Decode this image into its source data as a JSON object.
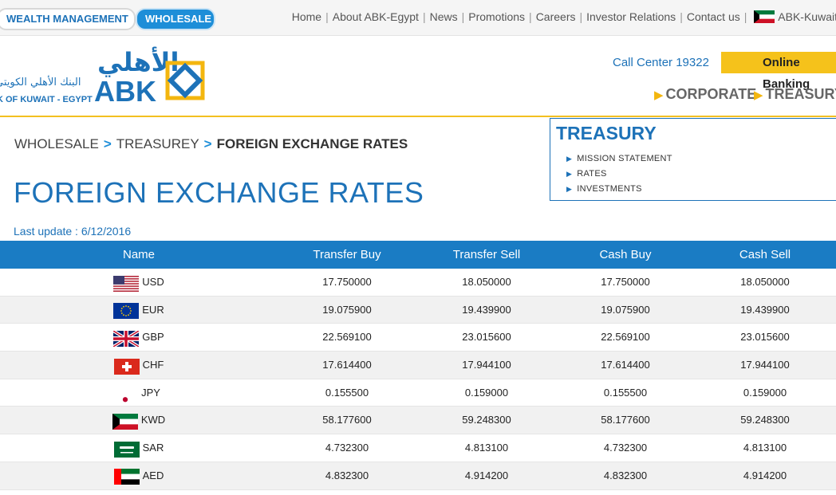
{
  "topbar": {
    "wealth_label": "WEALTH MANAGEMENT",
    "wholesale_label": "WHOLESALE",
    "nav": [
      "Home",
      "About ABK-Egypt",
      "News",
      "Promotions",
      "Careers",
      "Investor Relations",
      "Contact us"
    ],
    "kuwait_link": "ABK-Kuwait"
  },
  "header": {
    "logo_arabic": "الأهلي",
    "logo_latin": "ABK",
    "logo_arabic_name": "البنك الأهلي الكويتي",
    "logo_english_name": "K OF KUWAIT - EGYPT",
    "call_center": "Call Center 19322",
    "online_banking": "Online Banking",
    "sections": [
      "CORPORATE",
      "TREASURY"
    ]
  },
  "breadcrumb": {
    "items": [
      "WHOLESALE",
      "TREASUREY"
    ],
    "current": "FOREIGN EXCHANGE RATES"
  },
  "page": {
    "title": "FOREIGN EXCHANGE RATES",
    "last_update": "Last update : 6/12/2016"
  },
  "treasury_menu": {
    "title": "TREASURY",
    "items": [
      "MISSION STATEMENT",
      "RATES",
      "INVESTMENTS"
    ]
  },
  "table": {
    "headers": [
      "Name",
      "Transfer Buy",
      "Transfer Sell",
      "Cash Buy",
      "Cash Sell"
    ],
    "rows": [
      {
        "code": "USD",
        "flag": "us-flag-icon",
        "tb": "17.750000",
        "ts": "18.050000",
        "cb": "17.750000",
        "cs": "18.050000"
      },
      {
        "code": "EUR",
        "flag": "eu-flag-icon",
        "tb": "19.075900",
        "ts": "19.439900",
        "cb": "19.075900",
        "cs": "19.439900"
      },
      {
        "code": "GBP",
        "flag": "uk-flag-icon",
        "tb": "22.569100",
        "ts": "23.015600",
        "cb": "22.569100",
        "cs": "23.015600"
      },
      {
        "code": "CHF",
        "flag": "swiss-flag-icon",
        "tb": "17.614400",
        "ts": "17.944100",
        "cb": "17.614400",
        "cs": "17.944100"
      },
      {
        "code": "JPY",
        "flag": "japan-flag-icon",
        "tb": "0.155500",
        "ts": "0.159000",
        "cb": "0.155500",
        "cs": "0.159000"
      },
      {
        "code": "KWD",
        "flag": "kuwait-flag-icon",
        "tb": "58.177600",
        "ts": "59.248300",
        "cb": "58.177600",
        "cs": "59.248300"
      },
      {
        "code": "SAR",
        "flag": "saudi-flag-icon",
        "tb": "4.732300",
        "ts": "4.813100",
        "cb": "4.732300",
        "cs": "4.813100"
      },
      {
        "code": "AED",
        "flag": "uae-flag-icon",
        "tb": "4.832300",
        "ts": "4.914200",
        "cb": "4.832300",
        "cs": "4.914200"
      }
    ]
  },
  "colors": {
    "brand_blue": "#1d72b8",
    "header_blue": "#1a7cc4",
    "accent_yellow": "#f5c21b"
  }
}
